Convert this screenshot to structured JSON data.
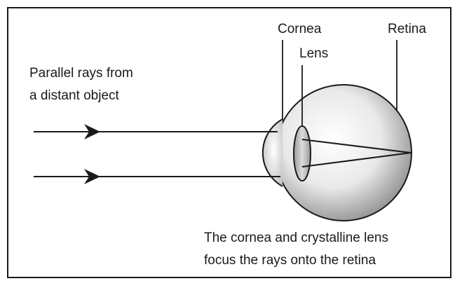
{
  "caption_source": {
    "line1": "Parallel rays from",
    "line2": "a distant object"
  },
  "labels": {
    "cornea": "Cornea",
    "lens": "Lens",
    "retina": "Retina"
  },
  "caption_bottom": {
    "line1": "The cornea and crystalline lens",
    "line2": "focus the rays onto the retina"
  },
  "colors": {
    "line": "#1a1a1a",
    "eyeball_light": "#ffffff",
    "eyeball_dark": "#8e8e8e",
    "lens_fill": "#c8c8c8"
  }
}
